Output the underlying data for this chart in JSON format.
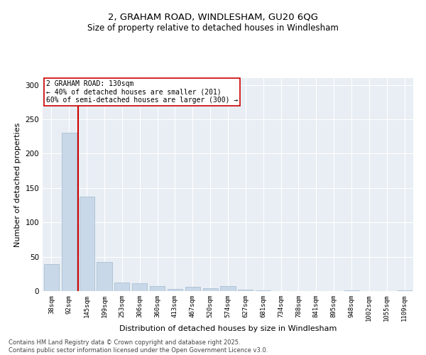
{
  "title_line1": "2, GRAHAM ROAD, WINDLESHAM, GU20 6QG",
  "title_line2": "Size of property relative to detached houses in Windlesham",
  "xlabel": "Distribution of detached houses by size in Windlesham",
  "ylabel": "Number of detached properties",
  "categories": [
    "38sqm",
    "92sqm",
    "145sqm",
    "199sqm",
    "253sqm",
    "306sqm",
    "360sqm",
    "413sqm",
    "467sqm",
    "520sqm",
    "574sqm",
    "627sqm",
    "681sqm",
    "734sqm",
    "788sqm",
    "841sqm",
    "895sqm",
    "948sqm",
    "1002sqm",
    "1055sqm",
    "1109sqm"
  ],
  "values": [
    39,
    230,
    137,
    42,
    12,
    11,
    7,
    3,
    6,
    4,
    7,
    2,
    1,
    0,
    0,
    0,
    0,
    1,
    0,
    0,
    1
  ],
  "bar_color": "#c8d8e8",
  "bar_edge_color": "#a0b8cc",
  "property_line_x": 1.5,
  "property_line_label": "2 GRAHAM ROAD: 130sqm",
  "annotation_smaller": "← 40% of detached houses are smaller (201)",
  "annotation_larger": "60% of semi-detached houses are larger (300) →",
  "vline_color": "#cc0000",
  "annotation_box_edge": "#cc0000",
  "footer_line1": "Contains HM Land Registry data © Crown copyright and database right 2025.",
  "footer_line2": "Contains public sector information licensed under the Open Government Licence v3.0.",
  "background_color": "#e8eef4",
  "ylim": [
    0,
    310
  ],
  "yticks": [
    0,
    50,
    100,
    150,
    200,
    250,
    300
  ]
}
